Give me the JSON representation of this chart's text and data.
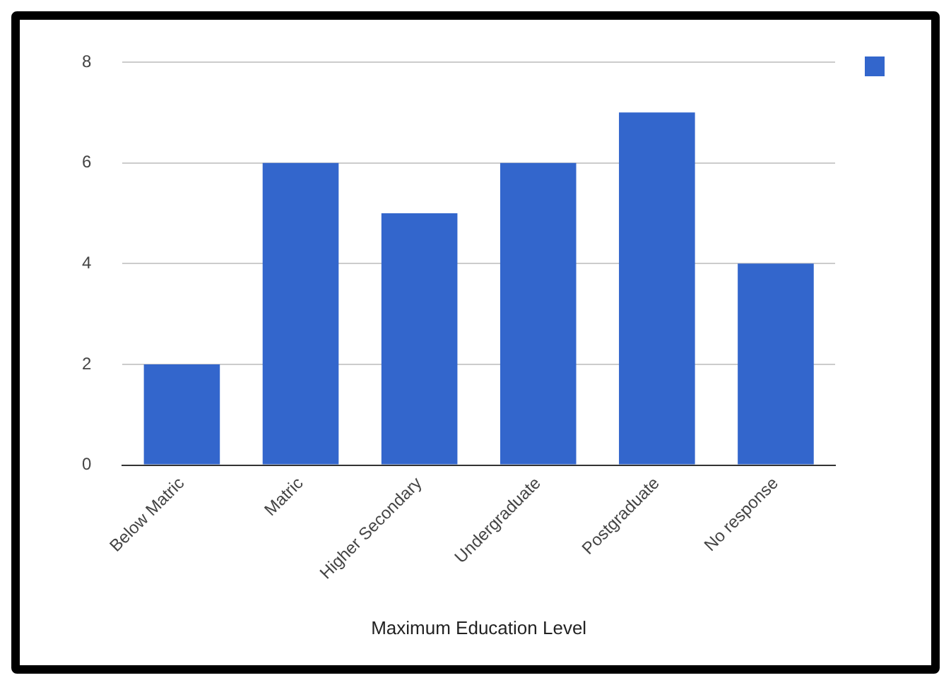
{
  "chart_data": {
    "type": "bar",
    "xlabel": "Maximum Education Level",
    "categories": [
      "Below Matric",
      "Matric",
      "Higher Secondary",
      "Undergraduate",
      "Postgraduate",
      "No response"
    ],
    "series": [
      {
        "color": "#3366cc",
        "values": [
          2,
          6,
          5,
          6,
          7,
          4
        ]
      }
    ],
    "ylim": [
      0,
      8
    ],
    "yticks": [
      0,
      2,
      4,
      6,
      8
    ],
    "grid": "y"
  }
}
